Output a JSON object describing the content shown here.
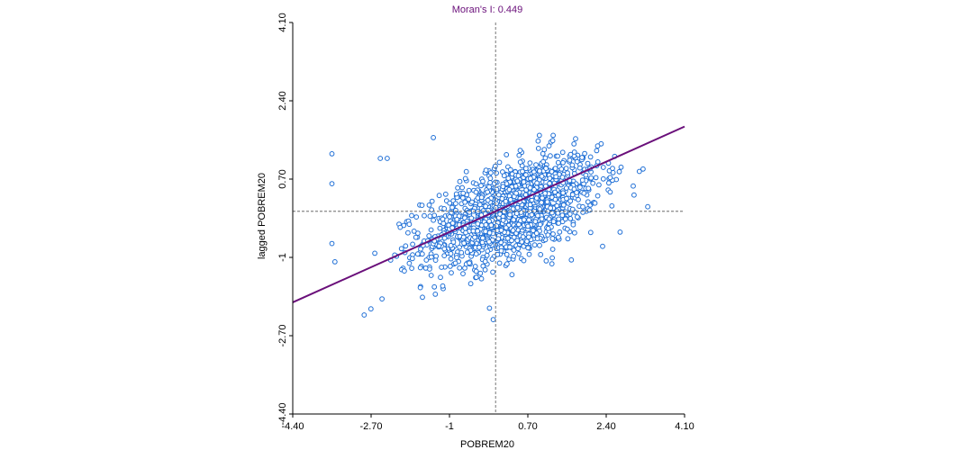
{
  "chart_data": {
    "type": "scatter",
    "title": "Moran's I: 0.449",
    "xlabel": "POBREM20",
    "ylabel": "lagged POBREM20",
    "xlim": [
      -4.4,
      4.1
    ],
    "ylim": [
      -4.4,
      4.1
    ],
    "x_ticks": [
      "-4.40",
      "-2.70",
      "-1",
      "0.70",
      "2.40",
      "4.10"
    ],
    "y_ticks": [
      "-4.40",
      "-2.70",
      "-1",
      "0.70",
      "2.40",
      "4.10"
    ],
    "x_tick_values": [
      -4.4,
      -2.7,
      -1,
      0.7,
      2.4,
      4.1
    ],
    "y_tick_values": [
      -4.4,
      -2.7,
      -1,
      0.7,
      2.4,
      4.1
    ],
    "reference_lines": {
      "x": 0,
      "y": 0
    },
    "regression": {
      "slope": 0.449,
      "intercept": 0,
      "color": "#6a0f7a"
    },
    "point_color": "#1f6fd6",
    "grid": false,
    "n_points": 1500,
    "distribution": {
      "x_mean": 0.35,
      "x_sd": 0.95,
      "y_mean": 0.0,
      "y_sd": 0.6,
      "correlation": 0.55,
      "x_range": [
        -3.5,
        3.3
      ],
      "y_range": [
        -2.5,
        1.6
      ]
    },
    "outliers": [
      {
        "x": -3.55,
        "y": 1.25
      },
      {
        "x": -3.55,
        "y": 0.6
      },
      {
        "x": -3.55,
        "y": -0.7
      },
      {
        "x": -2.85,
        "y": -2.25
      },
      {
        "x": -1.35,
        "y": 1.6
      },
      {
        "x": -0.05,
        "y": -2.35
      },
      {
        "x": 3.3,
        "y": 0.1
      },
      {
        "x": 2.7,
        "y": -0.45
      },
      {
        "x": -2.5,
        "y": 1.15
      },
      {
        "x": -2.35,
        "y": 1.15
      },
      {
        "x": 0.95,
        "y": 1.65
      },
      {
        "x": 1.25,
        "y": 1.65
      }
    ]
  }
}
